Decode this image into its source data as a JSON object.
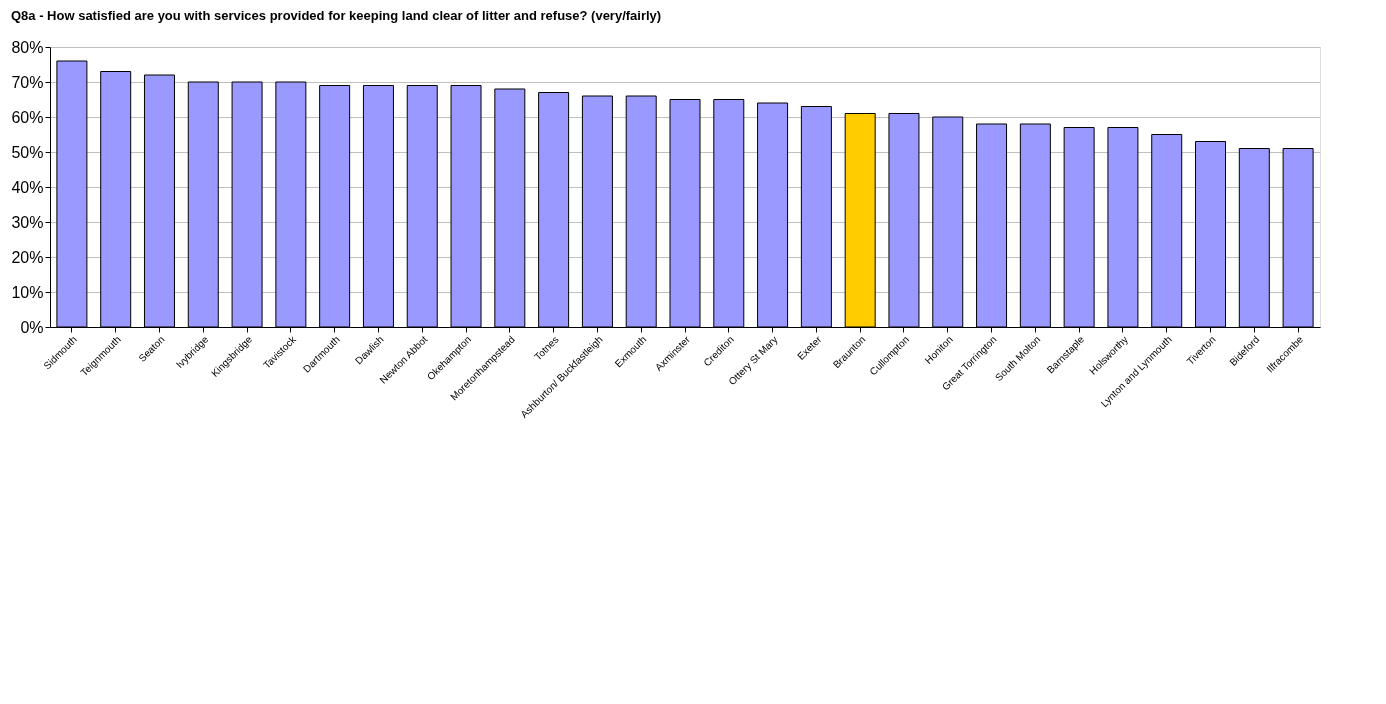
{
  "chart_data": {
    "type": "bar",
    "title": "Q8a - How satisfied are you with services provided for keeping land clear of litter and refuse? (very/fairly)",
    "categories": [
      "Sidmouth",
      "Teignmouth",
      "Seaton",
      "Ivybridge",
      "Kingsbridge",
      "Tavistock",
      "Dartmouth",
      "Dawlish",
      "Newton Abbot",
      "Okehampton",
      "Moretonhampstead",
      "Totnes",
      "Ashburton/ Buckfastleigh",
      "Exmouth",
      "Axminster",
      "Crediton",
      "Ottery St Mary",
      "Exeter",
      "Braunton",
      "Cullompton",
      "Honiton",
      "Great Torrington",
      "South Molton",
      "Barnstaple",
      "Holsworthy",
      "Lynton and Lynmouth",
      "Tiverton",
      "Bideford",
      "Ilfracombe"
    ],
    "values": [
      76,
      73,
      72,
      70,
      70,
      70,
      69,
      69,
      69,
      69,
      68,
      67,
      66,
      66,
      65,
      65,
      64,
      63,
      61,
      61,
      60,
      58,
      58,
      57,
      57,
      55,
      53,
      51,
      51
    ],
    "colors": [
      "#9999ff",
      "#9999ff",
      "#9999ff",
      "#9999ff",
      "#9999ff",
      "#9999ff",
      "#9999ff",
      "#9999ff",
      "#9999ff",
      "#9999ff",
      "#9999ff",
      "#9999ff",
      "#9999ff",
      "#9999ff",
      "#9999ff",
      "#9999ff",
      "#9999ff",
      "#9999ff",
      "#ffcc00",
      "#9999ff",
      "#9999ff",
      "#9999ff",
      "#9999ff",
      "#9999ff",
      "#9999ff",
      "#9999ff",
      "#9999ff",
      "#9999ff",
      "#9999ff"
    ],
    "ylim": [
      0,
      80
    ],
    "yticks": [
      {
        "value": 0,
        "label": "0%"
      },
      {
        "value": 10,
        "label": "10%"
      },
      {
        "value": 20,
        "label": "20%"
      },
      {
        "value": 30,
        "label": "30%"
      },
      {
        "value": 40,
        "label": "40%"
      },
      {
        "value": 50,
        "label": "50%"
      },
      {
        "value": 60,
        "label": "60%"
      },
      {
        "value": 70,
        "label": "70%"
      },
      {
        "value": 80,
        "label": "80%"
      }
    ],
    "grid": "y"
  }
}
